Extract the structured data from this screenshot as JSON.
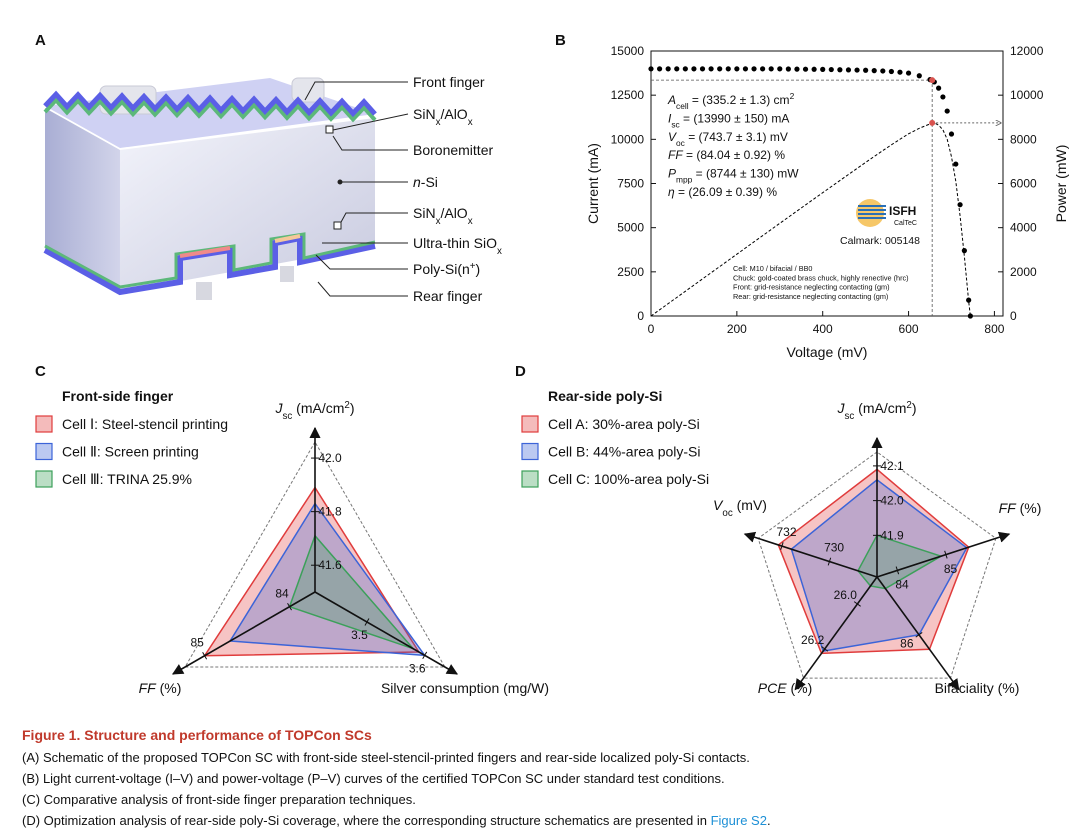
{
  "panel_labels": [
    "A",
    "B",
    "C",
    "D"
  ],
  "schematic": {
    "labels": [
      [
        {
          "text": "Front finger"
        }
      ],
      [
        {
          "text": "SiN"
        },
        {
          "text": "x",
          "style": "sub"
        },
        {
          "text": "/AlO"
        },
        {
          "text": "x",
          "style": "sub"
        }
      ],
      [
        {
          "text": "Boronemitter"
        }
      ],
      [
        {
          "text": "n",
          "style": "italic"
        },
        {
          "text": "-Si"
        }
      ],
      [
        {
          "text": "SiN"
        },
        {
          "text": "x",
          "style": "sub"
        },
        {
          "text": "/AlO"
        },
        {
          "text": "x",
          "style": "sub"
        }
      ],
      [
        {
          "text": "Ultra-thin SiO"
        },
        {
          "text": "x",
          "style": "sub"
        }
      ],
      [
        {
          "text": "Poly-Si(n"
        },
        {
          "text": "+",
          "style": "sup"
        },
        {
          "text": ")"
        }
      ],
      [
        {
          "text": "Rear finger"
        }
      ]
    ]
  },
  "chart_data": [
    {
      "type": "line",
      "xlabel": "Voltage (mV)",
      "ylabel": "Current (mA)",
      "y2label": "Power (mW)",
      "x": [
        0,
        20,
        40,
        60,
        80,
        100,
        120,
        140,
        160,
        180,
        200,
        220,
        240,
        260,
        280,
        300,
        320,
        340,
        360,
        380,
        400,
        420,
        440,
        460,
        480,
        500,
        520,
        540,
        560,
        580,
        600,
        625,
        650,
        660,
        670,
        680,
        690,
        700,
        710,
        720,
        730,
        740,
        744
      ],
      "series": [
        {
          "color": "#000000",
          "marker": "dot",
          "values": [
            13990,
            13990,
            13990,
            13990,
            13990,
            13990,
            13990,
            13990,
            13990,
            13990,
            13990,
            13990,
            13990,
            13990,
            13990,
            13990,
            13980,
            13975,
            13970,
            13965,
            13960,
            13950,
            13940,
            13930,
            13920,
            13910,
            13890,
            13870,
            13840,
            13800,
            13750,
            13600,
            13380,
            13250,
            12900,
            12400,
            11600,
            10300,
            8600,
            6300,
            3700,
            900,
            0
          ]
        },
        {
          "color": "#000000",
          "axis": "y2",
          "linestyle": "dashed",
          "values": [
            0,
            280,
            560,
            839,
            1119,
            1399,
            1679,
            1959,
            2238,
            2518,
            2798,
            3078,
            3358,
            3637,
            3917,
            4197,
            4474,
            4752,
            5029,
            5307,
            5584,
            5859,
            6134,
            6408,
            6682,
            6955,
            7223,
            7490,
            7750,
            8004,
            8250,
            8500,
            8697,
            8745,
            8643,
            8432,
            8004,
            7210,
            6106,
            4536,
            2701,
            666,
            0
          ]
        }
      ],
      "xlim": [
        0,
        820
      ],
      "xticks": [
        0,
        200,
        400,
        600,
        800
      ],
      "ylim": [
        0,
        15000
      ],
      "yticks": [
        0,
        2500,
        5000,
        7500,
        10000,
        12500,
        15000
      ],
      "y2lim": [
        0,
        12000
      ],
      "y2ticks": [
        0,
        2000,
        4000,
        6000,
        8000,
        10000,
        12000
      ],
      "mpp": {
        "x": 655,
        "current": 13350,
        "power": 8744,
        "color": "#d9534f"
      },
      "annotations": [
        [
          {
            "text": "A",
            "style": "italic"
          },
          {
            "text": "cell",
            "style": "sub"
          },
          {
            "text": " = (335.2 ± 1.3) cm"
          },
          {
            "text": "2",
            "style": "sup"
          }
        ],
        [
          {
            "text": "I",
            "style": "italic"
          },
          {
            "text": "sc",
            "style": "sub"
          },
          {
            "text": " = (13990 ± 150) mA"
          }
        ],
        [
          {
            "text": "V",
            "style": "italic"
          },
          {
            "text": "oc",
            "style": "sub"
          },
          {
            "text": " = (743.7 ± 3.1) mV"
          }
        ],
        [
          {
            "text": "FF",
            "style": "italic"
          },
          {
            "text": " = (84.04 ± 0.92) %"
          }
        ],
        [
          {
            "text": "P",
            "style": "italic"
          },
          {
            "text": "mpp",
            "style": "sub"
          },
          {
            "text": " = (8744 ± 130) mW"
          }
        ],
        [
          {
            "text": "η",
            "style": "italic"
          },
          {
            "text": " = (26.09 ± 0.39) %"
          }
        ]
      ],
      "logo": {
        "name": "ISFH",
        "sub": "CalTeC"
      },
      "calmark": "Calmark: 005148",
      "notes": [
        "Cell: M10 / bifacial / BB0",
        "Chuck: gold-coated brass chuck, highly renective (hrc)",
        "Front: grid-resistance neglecting contacting (gm)",
        "Rear: grid-resistance neglecting contacting (gm)"
      ]
    },
    {
      "type": "radar",
      "title": "Front-side finger",
      "axes": [
        {
          "label": [
            {
              "text": "J",
              "style": "italic"
            },
            {
              "text": "sc",
              "style": "sub"
            },
            {
              "text": " (mA/cm"
            },
            {
              "text": "2",
              "style": "sup"
            },
            {
              "text": ")"
            }
          ],
          "range": [
            41.5,
            42.06
          ],
          "ticks": [
            41.6,
            41.8,
            {
              "value": 42,
              "label": "42.0"
            }
          ]
        },
        {
          "label": [
            {
              "text": "FF",
              "style": "italic"
            },
            {
              "text": " (%)"
            }
          ],
          "range": [
            83.7,
            85.23
          ],
          "ticks": [
            84,
            85
          ]
        },
        {
          "label": [
            {
              "text": "Silver consumption (mg/W)"
            }
          ],
          "range": [
            3.41,
            3.635
          ],
          "ticks": [
            3.5,
            3.6
          ]
        }
      ],
      "series": [
        {
          "name": "Cell Ⅰ: Steel-stencil printing",
          "color": "#e03c3c",
          "values": [
            41.89,
            85.0,
            3.59
          ]
        },
        {
          "name": "Cell Ⅱ: Screen printing",
          "color": "#3c64d8",
          "values": [
            41.83,
            84.7,
            3.6
          ]
        },
        {
          "name": "Cell Ⅲ: TRINA 25.9%",
          "color": "#3ca05a",
          "values": [
            41.71,
            84.0,
            3.58
          ]
        }
      ]
    },
    {
      "type": "radar",
      "title": "Rear-side poly-Si",
      "axes": [
        {
          "label": [
            {
              "text": "J",
              "style": "italic"
            },
            {
              "text": "sc",
              "style": "sub"
            },
            {
              "text": " (mA/cm"
            },
            {
              "text": "2",
              "style": "sup"
            },
            {
              "text": ")"
            }
          ],
          "range": [
            41.78,
            42.14
          ],
          "ticks": [
            41.9,
            {
              "value": 42,
              "label": "42.0"
            },
            42.1
          ]
        },
        {
          "label": [
            {
              "text": "V",
              "style": "italic"
            },
            {
              "text": "oc",
              "style": "sub"
            },
            {
              "text": " (mV)"
            }
          ],
          "range": [
            728,
            733
          ],
          "ticks": [
            730,
            732
          ]
        },
        {
          "label": [
            {
              "text": "PCE",
              "style": "italic"
            },
            {
              "text": " (%)"
            }
          ],
          "range": [
            25.88,
            26.33
          ],
          "ticks": [
            {
              "value": 26,
              "label": "26.0"
            },
            26.2
          ]
        },
        {
          "label": [
            {
              "text": "Bifaciality (%)"
            }
          ],
          "range": [
            78,
            92
          ],
          "ticks": [
            86
          ]
        },
        {
          "label": [
            {
              "text": "FF",
              "style": "italic"
            },
            {
              "text": " (%)"
            }
          ],
          "range": [
            83.58,
            86.03
          ],
          "ticks": [
            84,
            85
          ]
        }
      ],
      "series": [
        {
          "name": "Cell A: 30%-area poly-Si",
          "color": "#e03c3c",
          "values": [
            42.09,
            732.15,
            26.22,
            88.0,
            85.47
          ]
        },
        {
          "name": "Cell B: 44%-area poly-Si",
          "color": "#3c64d8",
          "values": [
            42.06,
            731.6,
            26.21,
            86.0,
            85.43
          ]
        },
        {
          "name": "Cell C: 100%-area poly-Si",
          "color": "#3ca05a",
          "values": [
            41.9,
            728.8,
            25.92,
            79.6,
            84.9
          ]
        }
      ]
    }
  ],
  "caption": {
    "title": "Figure 1.  Structure and performance of TOPCon SCs",
    "lines": [
      "(A) Schematic of the proposed TOPCon SC with front-side steel-stencil-printed fingers and rear-side localized poly-Si contacts.",
      "(B) Light current-voltage (I–V) and power-voltage (P–V) curves of the certified TOPCon SC under standard test conditions.",
      "(C) Comparative analysis of front-side finger preparation techniques.",
      "(D) Optimization analysis of rear-side poly-Si coverage, where the corresponding structure schematics are presented in "
    ],
    "link": "Figure S2",
    "end": "."
  }
}
